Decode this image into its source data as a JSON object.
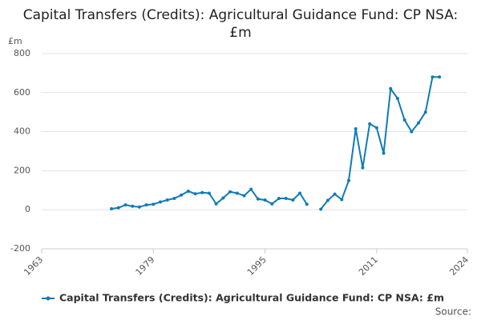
{
  "chart_data": {
    "type": "line",
    "title": "Capital Transfers (Credits): Agricultural Guidance Fund: CP NSA: £m",
    "y_label": "£m",
    "source": "Source:",
    "x": [
      1973,
      1974,
      1975,
      1976,
      1977,
      1978,
      1979,
      1980,
      1981,
      1982,
      1983,
      1984,
      1985,
      1986,
      1987,
      1988,
      1989,
      1990,
      1991,
      1992,
      1993,
      1994,
      1995,
      1996,
      1997,
      1998,
      1999,
      2000,
      2001,
      2002,
      2003,
      2004,
      2005,
      2006,
      2007,
      2008,
      2009,
      2010,
      2011,
      2012,
      2013,
      2014,
      2015,
      2016,
      2017,
      2018,
      2019,
      2020
    ],
    "series": [
      {
        "name": "Capital Transfers (Credits): Agricultural Guidance Fund: CP NSA: £m",
        "color": "#0f7cb6",
        "values": [
          5,
          10,
          25,
          18,
          14,
          25,
          28,
          40,
          50,
          58,
          75,
          95,
          82,
          88,
          85,
          30,
          60,
          92,
          85,
          72,
          105,
          55,
          50,
          30,
          58,
          58,
          50,
          85,
          28,
          null,
          3,
          48,
          80,
          52,
          150,
          415,
          215,
          440,
          420,
          290,
          620,
          570,
          460,
          400,
          445,
          500,
          680,
          680
        ]
      }
    ],
    "xlim": [
      1963,
      2024
    ],
    "xticks": [
      1963,
      1979,
      1995,
      2011,
      2024
    ],
    "ylim": [
      -200,
      800
    ],
    "yticks": [
      -200,
      0,
      200,
      400,
      600,
      800
    ],
    "grid": true,
    "legend": "bottom"
  }
}
